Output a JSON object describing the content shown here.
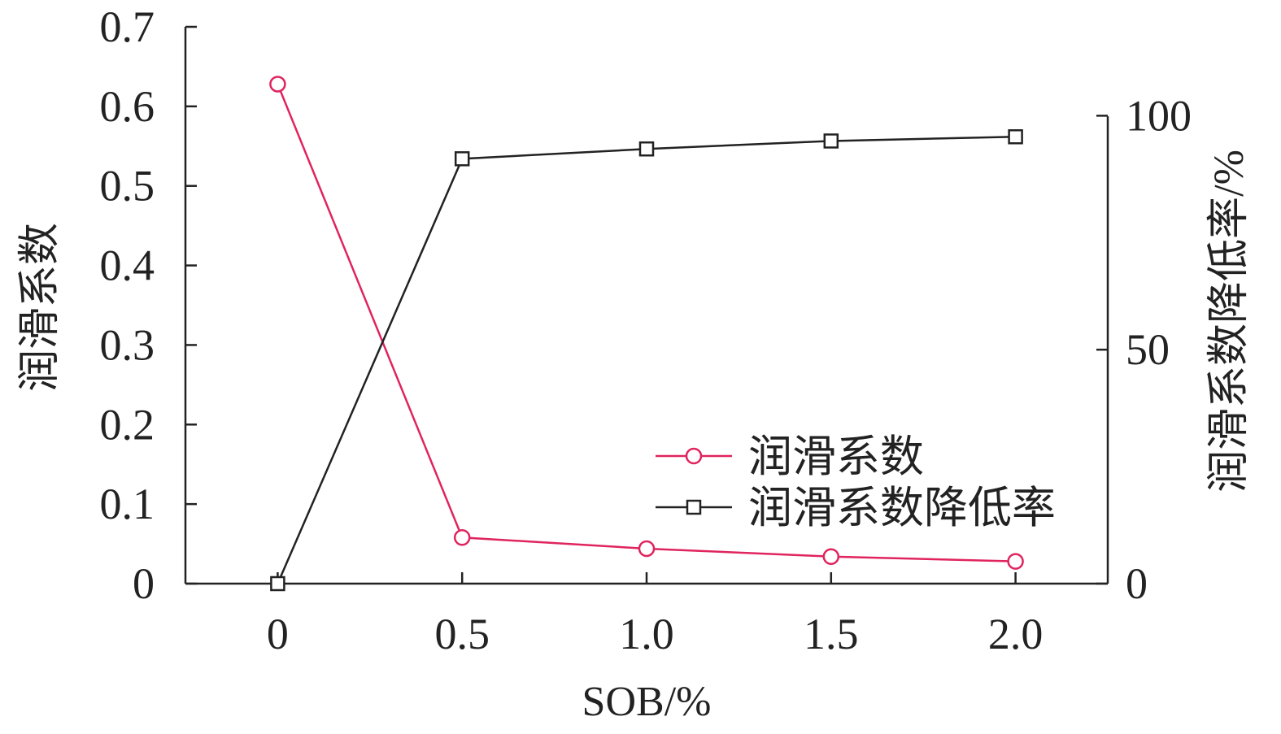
{
  "chart_data": {
    "type": "line",
    "x": [
      0,
      0.5,
      1.0,
      1.5,
      2.0
    ],
    "x_tick_labels": [
      "0",
      "0.5",
      "1.0",
      "1.5",
      "2.0"
    ],
    "xlabel": "SOB/%",
    "ylabel": "润滑系数",
    "y2label": "润滑系数降低率/%",
    "ylim": [
      0,
      0.7
    ],
    "y_tick_labels": [
      "0",
      "0.1",
      "0.2",
      "0.3",
      "0.4",
      "0.5",
      "0.6",
      "0.7"
    ],
    "y2lim": [
      0,
      119
    ],
    "y2_tick_values": [
      0,
      50,
      100
    ],
    "y2_tick_labels": [
      "0",
      "50",
      "100"
    ],
    "series": [
      {
        "name": "润滑系数",
        "axis": "left",
        "marker": "circle",
        "color": "#e0245e",
        "values": [
          0.628,
          0.058,
          0.044,
          0.034,
          0.028
        ]
      },
      {
        "name": "润滑系数降低率",
        "axis": "right",
        "marker": "square",
        "color": "#222222",
        "values": [
          0,
          90.8,
          92.9,
          94.6,
          95.5
        ]
      }
    ],
    "legend_position": "bottom-right",
    "grid": false
  }
}
